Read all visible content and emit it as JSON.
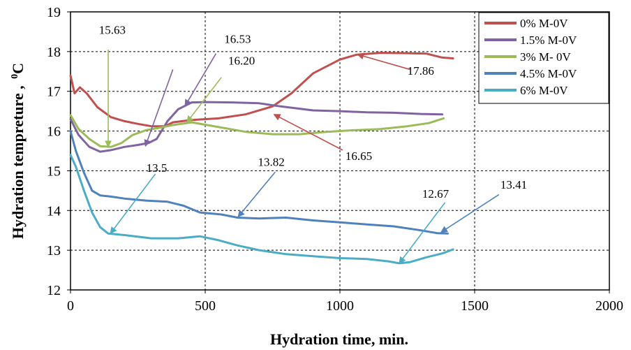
{
  "chart_data": {
    "type": "line",
    "xlabel": "Hydration time, min.",
    "ylabel": "Hydration tempreture ,",
    "ylabel_unit": "0C",
    "xlim": [
      0,
      2000
    ],
    "ylim": [
      12,
      19
    ],
    "x_ticks": [
      "0",
      "500",
      "1000",
      "1500",
      "2000"
    ],
    "y_ticks": [
      "12",
      "13",
      "14",
      "15",
      "16",
      "17",
      "18",
      "19"
    ],
    "grid": "dashed",
    "legend_position": "top-right",
    "series": [
      {
        "name": "0% M-0V",
        "color": "#C0504D",
        "points": [
          [
            0,
            17.4
          ],
          [
            15,
            16.95
          ],
          [
            35,
            17.1
          ],
          [
            60,
            16.95
          ],
          [
            100,
            16.6
          ],
          [
            150,
            16.35
          ],
          [
            200,
            16.25
          ],
          [
            250,
            16.18
          ],
          [
            300,
            16.12
          ],
          [
            350,
            16.12
          ],
          [
            380,
            16.22
          ],
          [
            450,
            16.28
          ],
          [
            550,
            16.32
          ],
          [
            650,
            16.42
          ],
          [
            750,
            16.62
          ],
          [
            820,
            16.95
          ],
          [
            900,
            17.45
          ],
          [
            1000,
            17.8
          ],
          [
            1060,
            17.92
          ],
          [
            1150,
            17.97
          ],
          [
            1250,
            17.96
          ],
          [
            1320,
            17.95
          ],
          [
            1380,
            17.85
          ],
          [
            1420,
            17.83
          ]
        ]
      },
      {
        "name": "1.5% M-0V",
        "color": "#8064A2",
        "points": [
          [
            0,
            16.3
          ],
          [
            30,
            15.9
          ],
          [
            70,
            15.6
          ],
          [
            110,
            15.48
          ],
          [
            150,
            15.52
          ],
          [
            200,
            15.6
          ],
          [
            250,
            15.65
          ],
          [
            290,
            15.7
          ],
          [
            320,
            15.8
          ],
          [
            360,
            16.25
          ],
          [
            400,
            16.55
          ],
          [
            450,
            16.72
          ],
          [
            500,
            16.73
          ],
          [
            600,
            16.72
          ],
          [
            700,
            16.7
          ],
          [
            780,
            16.62
          ],
          [
            900,
            16.52
          ],
          [
            1000,
            16.5
          ],
          [
            1100,
            16.47
          ],
          [
            1200,
            16.46
          ],
          [
            1300,
            16.43
          ],
          [
            1380,
            16.42
          ]
        ]
      },
      {
        "name": "3% M- 0V",
        "color": "#9BBB59",
        "points": [
          [
            0,
            16.4
          ],
          [
            30,
            16.05
          ],
          [
            70,
            15.8
          ],
          [
            110,
            15.62
          ],
          [
            150,
            15.6
          ],
          [
            190,
            15.7
          ],
          [
            230,
            15.9
          ],
          [
            280,
            16.02
          ],
          [
            330,
            16.08
          ],
          [
            380,
            16.15
          ],
          [
            450,
            16.22
          ],
          [
            550,
            16.1
          ],
          [
            650,
            15.98
          ],
          [
            750,
            15.92
          ],
          [
            850,
            15.92
          ],
          [
            950,
            15.98
          ],
          [
            1050,
            16.02
          ],
          [
            1150,
            16.05
          ],
          [
            1250,
            16.12
          ],
          [
            1330,
            16.2
          ],
          [
            1385,
            16.32
          ]
        ]
      },
      {
        "name": "4.5% M-0V",
        "color": "#4F81BD",
        "points": [
          [
            0,
            16.0
          ],
          [
            20,
            15.5
          ],
          [
            50,
            14.95
          ],
          [
            80,
            14.5
          ],
          [
            110,
            14.38
          ],
          [
            150,
            14.35
          ],
          [
            200,
            14.3
          ],
          [
            280,
            14.25
          ],
          [
            360,
            14.22
          ],
          [
            420,
            14.12
          ],
          [
            480,
            13.95
          ],
          [
            560,
            13.9
          ],
          [
            620,
            13.82
          ],
          [
            700,
            13.8
          ],
          [
            800,
            13.82
          ],
          [
            900,
            13.75
          ],
          [
            1000,
            13.7
          ],
          [
            1100,
            13.65
          ],
          [
            1200,
            13.6
          ],
          [
            1300,
            13.5
          ],
          [
            1360,
            13.43
          ],
          [
            1400,
            13.42
          ]
        ]
      },
      {
        "name": "6% M-0V",
        "color": "#4BACC6",
        "points": [
          [
            0,
            15.4
          ],
          [
            20,
            15.1
          ],
          [
            50,
            14.5
          ],
          [
            80,
            13.95
          ],
          [
            110,
            13.58
          ],
          [
            140,
            13.42
          ],
          [
            200,
            13.38
          ],
          [
            300,
            13.3
          ],
          [
            400,
            13.3
          ],
          [
            480,
            13.35
          ],
          [
            550,
            13.25
          ],
          [
            620,
            13.12
          ],
          [
            700,
            13.0
          ],
          [
            800,
            12.9
          ],
          [
            900,
            12.85
          ],
          [
            1000,
            12.8
          ],
          [
            1100,
            12.78
          ],
          [
            1180,
            12.72
          ],
          [
            1220,
            12.67
          ],
          [
            1260,
            12.7
          ],
          [
            1320,
            12.82
          ],
          [
            1380,
            12.92
          ],
          [
            1420,
            13.02
          ]
        ]
      }
    ],
    "annotations": [
      {
        "text": "15.63",
        "color": "#9BBB59",
        "label_x": 155,
        "label_y": 18.45,
        "arrow_from_x": 140,
        "arrow_from_y": 18.05,
        "arrow_to_x": 140,
        "arrow_to_y": 15.6
      },
      {
        "text": "16.53",
        "color": "#8064A2",
        "label_x": 620,
        "label_y": 18.22,
        "arrow_from_x": 540,
        "arrow_from_y": 17.95,
        "arrow_to_x": 425,
        "arrow_to_y": 16.63
      },
      {
        "text": "",
        "color": "#8064A2",
        "label_x": 0,
        "label_y": 0,
        "arrow_from_x": 380,
        "arrow_from_y": 17.55,
        "arrow_to_x": 278,
        "arrow_to_y": 15.62
      },
      {
        "text": "16.20",
        "color": "#9BBB59",
        "label_x": 635,
        "label_y": 17.67,
        "arrow_from_x": 560,
        "arrow_from_y": 17.35,
        "arrow_to_x": 432,
        "arrow_to_y": 16.22
      },
      {
        "text": "17.86",
        "color": "#C0504D",
        "label_x": 1300,
        "label_y": 17.42,
        "arrow_from_x": 1260,
        "arrow_from_y": 17.55,
        "arrow_to_x": 1065,
        "arrow_to_y": 17.93
      },
      {
        "text": "16.65",
        "color": "#C0504D",
        "label_x": 1070,
        "label_y": 15.27,
        "arrow_from_x": 1010,
        "arrow_from_y": 15.52,
        "arrow_to_x": 755,
        "arrow_to_y": 16.42
      },
      {
        "text": "13.5",
        "color": "#4BACC6",
        "label_x": 320,
        "label_y": 14.97,
        "arrow_from_x": 315,
        "arrow_from_y": 14.92,
        "arrow_to_x": 148,
        "arrow_to_y": 13.42
      },
      {
        "text": "13.82",
        "color": "#4F81BD",
        "label_x": 745,
        "label_y": 15.12,
        "arrow_from_x": 760,
        "arrow_from_y": 14.97,
        "arrow_to_x": 622,
        "arrow_to_y": 13.84
      },
      {
        "text": "12.67",
        "color": "#4BACC6",
        "label_x": 1355,
        "label_y": 14.32,
        "arrow_from_x": 1390,
        "arrow_from_y": 14.2,
        "arrow_to_x": 1220,
        "arrow_to_y": 12.67
      },
      {
        "text": "13.41",
        "color": "#4F81BD",
        "label_x": 1645,
        "label_y": 14.55,
        "arrow_from_x": 1590,
        "arrow_from_y": 14.4,
        "arrow_to_x": 1375,
        "arrow_to_y": 13.45
      }
    ]
  }
}
